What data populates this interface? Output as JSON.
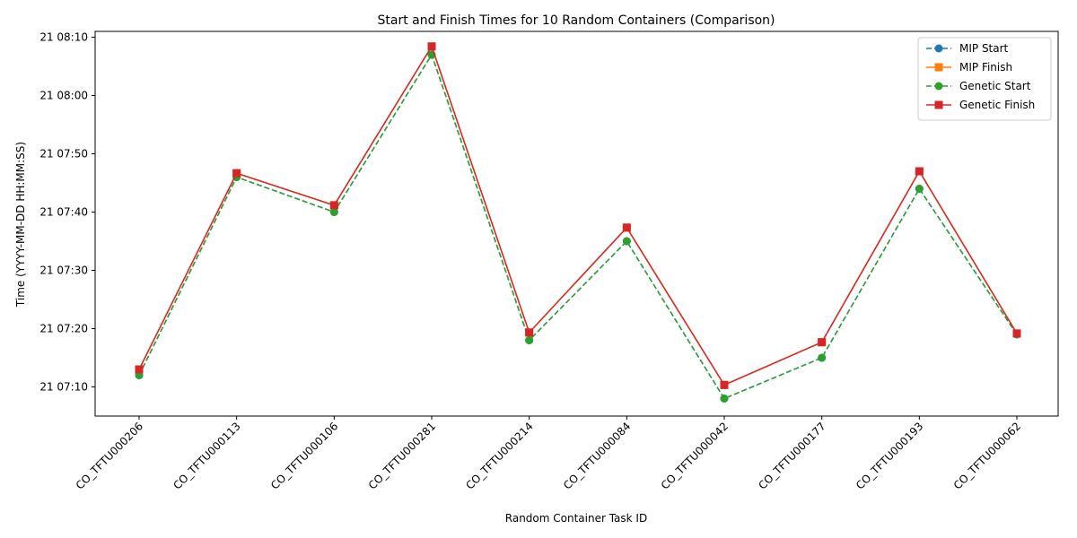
{
  "chart_data": {
    "type": "line",
    "title": "Start and Finish Times for 10 Random Containers (Comparison)",
    "xlabel": "Random Container Task ID",
    "ylabel": "Time (YYYY-MM-DD HH:MM:SS)",
    "categories": [
      "CO_TFTU000206",
      "CO_TFTU000113",
      "CO_TFTU000106",
      "CO_TFTU000281",
      "CO_TFTU000214",
      "CO_TFTU000084",
      "CO_TFTU000042",
      "CO_TFTU000177",
      "CO_TFTU000193",
      "CO_TFTU000062"
    ],
    "y_ticks": [
      "21 07:10",
      "21 07:20",
      "21 07:30",
      "21 07:40",
      "21 07:50",
      "21 08:00",
      "21 08:10"
    ],
    "ylim": [
      "21 07:05",
      "21 08:11"
    ],
    "grid": false,
    "legend_position": "top-right",
    "series": [
      {
        "name": "MIP Start",
        "color": "#1f77b4",
        "marker": "circle",
        "line_style": "dashed",
        "values": [
          "21 07:12",
          "21 07:46",
          "21 07:40",
          "21 08:07",
          "21 07:18",
          "21 07:35",
          "21 07:08",
          "21 07:15",
          "21 07:44",
          "21 07:19"
        ]
      },
      {
        "name": "MIP Finish",
        "color": "#ff7f0e",
        "marker": "square",
        "line_style": "solid",
        "values": [
          "21 07:13",
          "21 07:46:40",
          "21 07:41:10",
          "21 08:08:25",
          "21 07:19:20",
          "21 07:37:20",
          "21 07:10:20",
          "21 07:17:40",
          "21 07:47",
          "21 07:19:10"
        ]
      },
      {
        "name": "Genetic Start",
        "color": "#2ca02c",
        "marker": "circle",
        "line_style": "dashed",
        "values": [
          "21 07:12",
          "21 07:46",
          "21 07:40",
          "21 08:07",
          "21 07:18",
          "21 07:35",
          "21 07:08",
          "21 07:15",
          "21 07:44",
          "21 07:19"
        ]
      },
      {
        "name": "Genetic Finish",
        "color": "#d62728",
        "marker": "square",
        "line_style": "solid",
        "values": [
          "21 07:13",
          "21 07:46:40",
          "21 07:41:10",
          "21 08:08:25",
          "21 07:19:20",
          "21 07:37:20",
          "21 07:10:20",
          "21 07:17:40",
          "21 07:47",
          "21 07:19:10"
        ]
      }
    ]
  }
}
